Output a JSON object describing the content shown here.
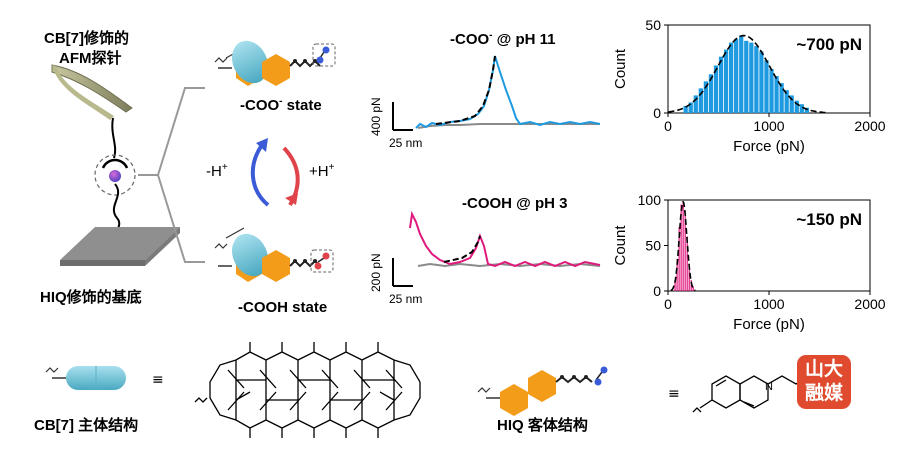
{
  "labels": {
    "afm_tip_line1": "CB[7]修饰的",
    "afm_tip_line2": "AFM探针",
    "substrate": "HIQ修饰的基底",
    "coo_state_prefix": "-COO",
    "coo_state_sup": "-",
    "coo_state_suffix": " state",
    "cooh_state": "-COOH state",
    "minus_h": "-H",
    "plus_h": "+H",
    "h_sup": "+",
    "cb7_structure": "CB[7] 主体结构",
    "hiq_structure": "HIQ 客体结构",
    "equiv": "≡",
    "logo_line1": "山大",
    "logo_line2": "融媒"
  },
  "traces": {
    "pH11_title_prefix": "-COO",
    "pH11_title_sup": "-",
    "pH11_title_suffix": " @ pH 11",
    "pH3_title": "-COOH @ pH 3",
    "top_force_scale": "400 pN",
    "top_dist_scale": "25 nm",
    "bottom_force_scale": "200 pN",
    "bottom_dist_scale": "25 nm"
  },
  "colors": {
    "blue": "#1e9be0",
    "magenta": "#e0197d",
    "gray": "#8a8a8a",
    "cb7_cyan": "#6fc3d6",
    "hiq_orange": "#f39c1a",
    "accent_blue": "#3b5bd6",
    "accent_red": "#e0444a"
  },
  "chart_data": [
    {
      "type": "bar",
      "name_text": "~700 pN",
      "xlabel": "Force (pN)",
      "ylabel": "Count",
      "xlim": [
        0,
        2000
      ],
      "ylim": [
        0,
        50
      ],
      "xticks": [
        0,
        1000,
        2000
      ],
      "yticks": [
        0,
        50
      ],
      "bin_width": 50,
      "bin_starts": [
        150,
        200,
        250,
        300,
        350,
        400,
        450,
        500,
        550,
        600,
        650,
        700,
        750,
        800,
        850,
        900,
        950,
        1000,
        1050,
        1100,
        1150,
        1200,
        1250,
        1300,
        1350
      ],
      "values": [
        4,
        6,
        10,
        14,
        18,
        22,
        27,
        32,
        36,
        40,
        42,
        44,
        41,
        40,
        38,
        35,
        30,
        25,
        21,
        17,
        13,
        10,
        7,
        5,
        3
      ]
    },
    {
      "type": "bar",
      "name_text": "~150 pN",
      "xlabel": "Force (pN)",
      "ylabel": "Count",
      "xlim": [
        0,
        2000
      ],
      "ylim": [
        0,
        100
      ],
      "xticks": [
        0,
        1000,
        2000
      ],
      "yticks": [
        0,
        50,
        100
      ],
      "bin_width": 20,
      "bin_starts": [
        60,
        80,
        100,
        120,
        140,
        160,
        180,
        200,
        220,
        240
      ],
      "values": [
        12,
        35,
        70,
        95,
        98,
        88,
        60,
        30,
        12,
        5
      ]
    }
  ]
}
